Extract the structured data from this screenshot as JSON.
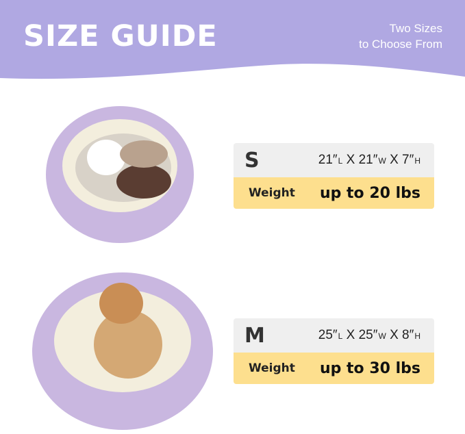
{
  "header": {
    "title": "SIZE GUIDE",
    "subtitle_line1": "Two Sizes",
    "subtitle_line2": "to Choose From",
    "color": "#b0a8e2"
  },
  "sizes": [
    {
      "size": "S",
      "length": "21″",
      "width": "21″",
      "height": "7″",
      "unit_l": "L",
      "unit_w": "W",
      "unit_h": "H",
      "sep": "X",
      "weight_label": "Weight",
      "weight_value": "up to 20 lbs",
      "pet": "cat"
    },
    {
      "size": "M",
      "length": "25″",
      "width": "25″",
      "height": "8″",
      "unit_l": "L",
      "unit_w": "W",
      "unit_h": "H",
      "sep": "X",
      "weight_label": "Weight",
      "weight_value": "up to 30 lbs",
      "pet": "dog"
    }
  ],
  "colors": {
    "row_top": "#efefef",
    "row_bottom": "#fddf8e",
    "bed": "#c9b7e0",
    "cushion": "#f3eedd"
  }
}
